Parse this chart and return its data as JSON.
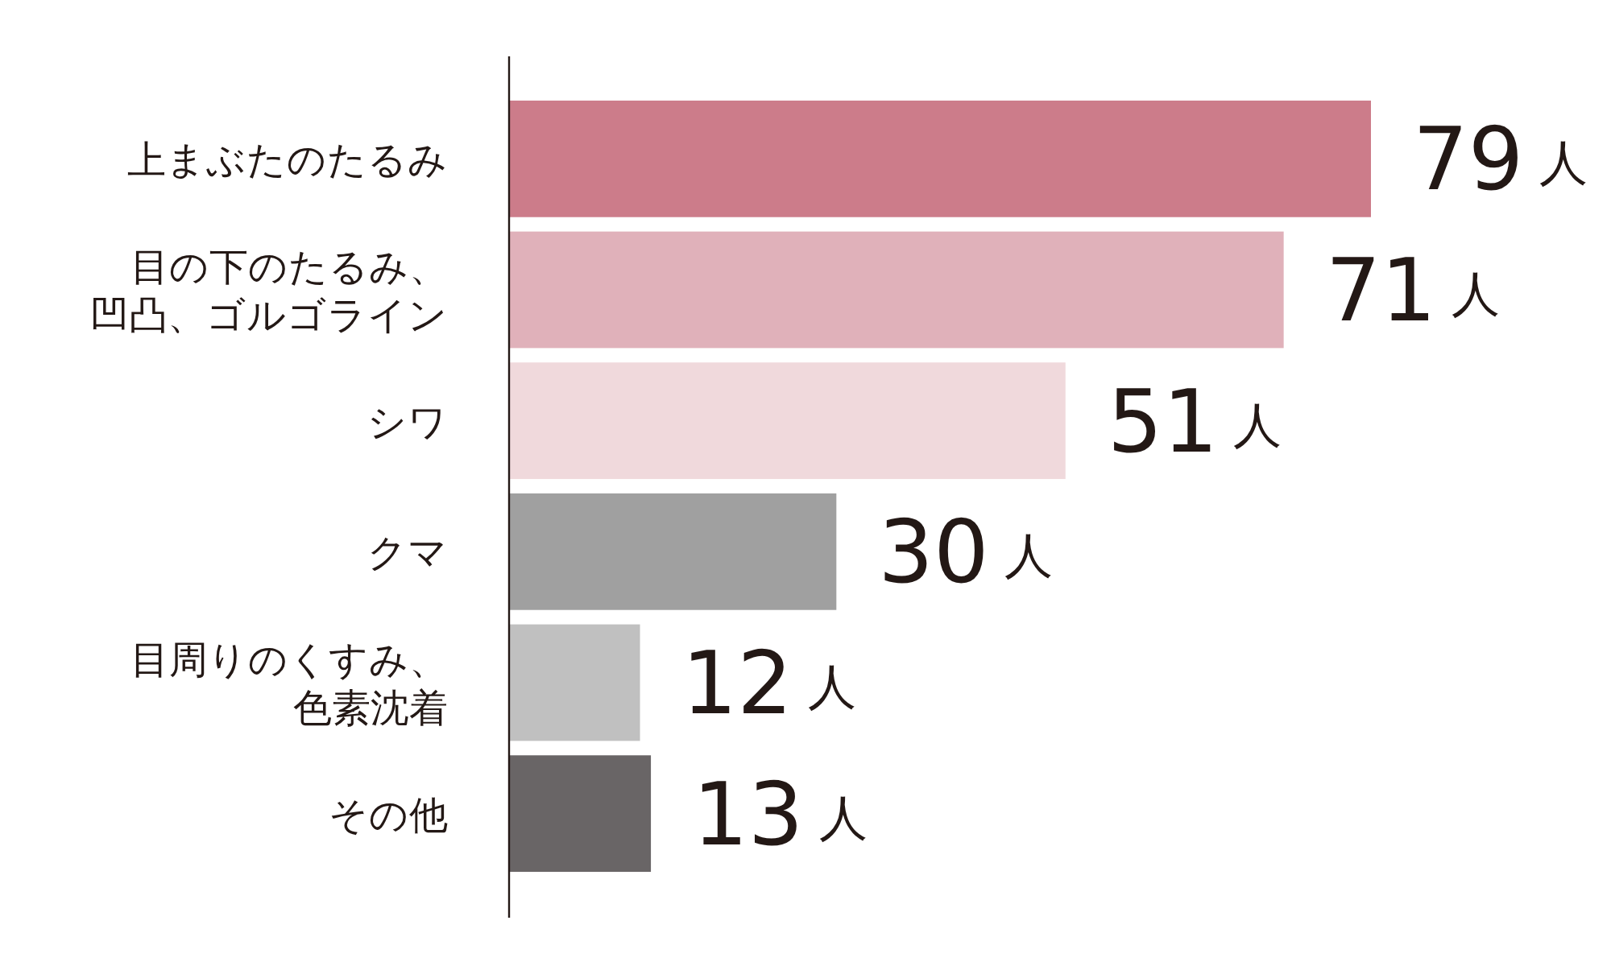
{
  "chart_data": {
    "type": "bar",
    "orientation": "horizontal",
    "categories": [
      "上まぶたのたるみ",
      "目の下のたるみ、凹凸、ゴルゴライン",
      "シワ",
      "クマ",
      "目周りのくすみ、色素沈着",
      "その他"
    ],
    "values": [
      79,
      71,
      51,
      30,
      12,
      13
    ],
    "colors": [
      "#cc7c8a",
      "#e0b1ba",
      "#f0d9dc",
      "#a0a0a0",
      "#c0c0c0",
      "#696566"
    ],
    "value_labels": [
      "79 人",
      "71 人",
      "51 人",
      "30 人",
      "12 人",
      "13 人"
    ]
  }
}
